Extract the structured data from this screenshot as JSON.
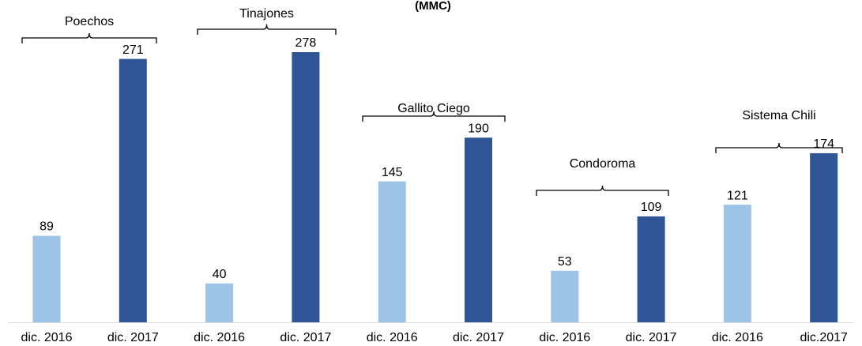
{
  "chart_data": {
    "type": "bar",
    "title": "(MMC)",
    "groups": [
      "Poechos",
      "Tinajones",
      "Gallito Ciego",
      "Condoroma",
      "Sistema Chili"
    ],
    "categories": [
      "dic. 2016",
      "dic. 2017",
      "dic. 2016",
      "dic. 2017",
      "dic. 2016",
      "dic. 2017",
      "dic. 2016",
      "dic. 2017",
      "dic. 2016",
      "dic.2017"
    ],
    "values": [
      89,
      271,
      40,
      278,
      145,
      190,
      53,
      109,
      121,
      174
    ],
    "colors": [
      "#9dc3e6",
      "#2f5597",
      "#9dc3e6",
      "#2f5597",
      "#9dc3e6",
      "#2f5597",
      "#9dc3e6",
      "#2f5597",
      "#9dc3e6",
      "#2f5597"
    ]
  }
}
